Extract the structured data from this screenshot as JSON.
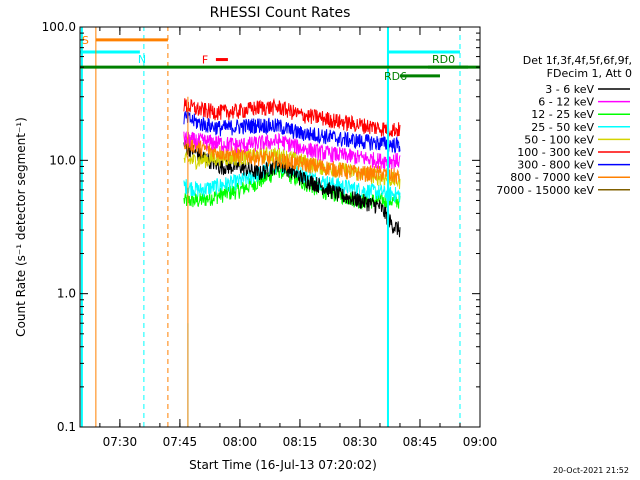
{
  "chart_data": {
    "type": "line",
    "title": "RHESSI Count Rates",
    "xlabel": "Start Time (16-Jul-13 07:20:02)",
    "ylabel": "Count Rate (s⁻¹ detector segment⁻¹)",
    "yscale": "log",
    "ylim": [
      0.1,
      100.0
    ],
    "xlim": [
      "07:20:02",
      "09:00:00"
    ],
    "x_ticks": [
      "07:30",
      "07:45",
      "08:00",
      "08:15",
      "08:30",
      "08:45",
      "09:00"
    ],
    "y_ticks": [
      "0.1",
      "1.0",
      "10.0",
      "100.0"
    ],
    "legend_title_line1": "Det 1f,3f,4f,5f,6f,9f,",
    "legend_title_line2": "FDecim 1, Att 0",
    "series": [
      {
        "name": "3 - 6 keV",
        "color": "#000000",
        "x": [
          "07:46",
          "07:50",
          "07:55",
          "08:00",
          "08:05",
          "08:10",
          "08:15",
          "08:20",
          "08:25",
          "08:30",
          "08:35",
          "08:38",
          "08:40"
        ],
        "values": [
          13.0,
          11.0,
          9.0,
          9.0,
          8.0,
          9.5,
          7.5,
          6.5,
          5.5,
          5.0,
          4.5,
          3.3,
          3.0
        ]
      },
      {
        "name": "6 - 12 keV",
        "color": "#ff00ff",
        "x": [
          "07:46",
          "07:50",
          "07:55",
          "08:00",
          "08:05",
          "08:10",
          "08:15",
          "08:20",
          "08:25",
          "08:30",
          "08:35",
          "08:40"
        ],
        "values": [
          14.5,
          14.0,
          13.5,
          13.0,
          13.5,
          14.0,
          12.5,
          11.5,
          11.0,
          10.5,
          10.0,
          10.0
        ]
      },
      {
        "name": "12 - 25 keV",
        "color": "#00ff00",
        "x": [
          "07:46",
          "07:50",
          "07:55",
          "08:00",
          "08:05",
          "08:10",
          "08:15",
          "08:20",
          "08:25",
          "08:30",
          "08:35",
          "08:40"
        ],
        "values": [
          5.0,
          5.0,
          5.5,
          6.0,
          7.0,
          8.5,
          7.0,
          6.0,
          5.5,
          5.0,
          5.0,
          5.0
        ]
      },
      {
        "name": "25 - 50 keV",
        "color": "#00ffff",
        "x": [
          "07:46",
          "07:50",
          "07:55",
          "08:00",
          "08:05",
          "08:10",
          "08:15",
          "08:20",
          "08:25",
          "08:30",
          "08:35",
          "08:40"
        ],
        "values": [
          6.5,
          6.0,
          6.5,
          7.0,
          8.0,
          9.5,
          8.0,
          7.0,
          6.5,
          6.0,
          5.8,
          5.5
        ]
      },
      {
        "name": "50 - 100 keV",
        "color": "#d4d400",
        "x": [
          "07:46",
          "07:50",
          "07:55",
          "08:00",
          "08:05",
          "08:10",
          "08:15",
          "08:20",
          "08:25",
          "08:30",
          "08:35",
          "08:40"
        ],
        "values": [
          10.0,
          10.0,
          10.5,
          10.5,
          11.0,
          11.0,
          10.0,
          9.0,
          8.5,
          8.0,
          7.5,
          7.0
        ]
      },
      {
        "name": "100 - 300 keV",
        "color": "#ff0000",
        "x": [
          "07:46",
          "07:50",
          "07:55",
          "08:00",
          "08:05",
          "08:10",
          "08:15",
          "08:20",
          "08:25",
          "08:30",
          "08:35",
          "08:40"
        ],
        "values": [
          26.0,
          24.0,
          23.0,
          23.5,
          25.0,
          25.0,
          22.0,
          21.0,
          19.5,
          18.5,
          17.5,
          17.0
        ]
      },
      {
        "name": "300 - 800 keV",
        "color": "#0000ff",
        "x": [
          "07:46",
          "07:50",
          "07:55",
          "08:00",
          "08:05",
          "08:10",
          "08:15",
          "08:20",
          "08:25",
          "08:30",
          "08:35",
          "08:40"
        ],
        "values": [
          21.0,
          19.0,
          17.5,
          18.0,
          18.5,
          18.0,
          16.0,
          15.5,
          14.5,
          14.0,
          13.5,
          13.0
        ]
      },
      {
        "name": "800 - 7000 keV",
        "color": "#ff8000",
        "x": [
          "07:46",
          "07:50",
          "07:55",
          "08:00",
          "08:05",
          "08:10",
          "08:15",
          "08:20",
          "08:25",
          "08:30",
          "08:35",
          "08:40"
        ],
        "values": [
          14.0,
          12.5,
          11.5,
          11.0,
          10.5,
          10.0,
          9.5,
          9.0,
          8.5,
          8.0,
          8.0,
          7.5
        ]
      },
      {
        "name": "7000 - 15000 keV",
        "color": "#806000",
        "x": [],
        "values": []
      }
    ],
    "markers": {
      "S": {
        "label": "S",
        "color": "#ff8000"
      },
      "N": {
        "label": "N",
        "color": "#00ffff"
      },
      "F": {
        "label": "F",
        "color": "#ff0000"
      },
      "RD0": {
        "label": "RD0",
        "color": "#008000"
      },
      "RD6": {
        "label": "RD6",
        "color": "#008000"
      }
    },
    "timestamp": "20-Oct-2021 21:52"
  }
}
